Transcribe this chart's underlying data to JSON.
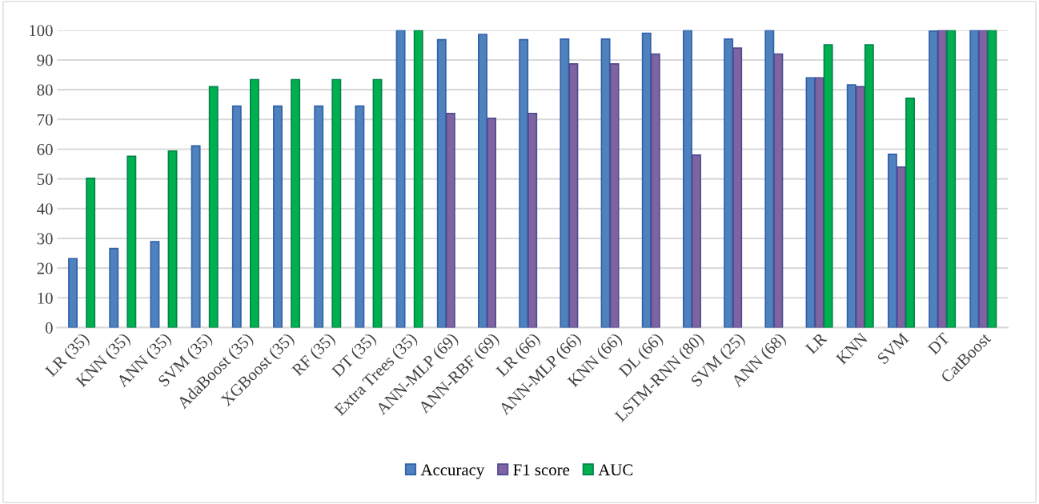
{
  "chart_data": {
    "type": "bar",
    "categories": [
      "LR (35)",
      "KNN (35)",
      "ANN (35)",
      "SVM (35)",
      "AdaBoost (35)",
      "XGBoost (35)",
      "RF (35)",
      "DT (35)",
      "Extra Trees (35)",
      "ANN-MLP (69)",
      "ANN-RBF (69)",
      "LR (66)",
      "ANN-MLP (66)",
      "KNN (66)",
      "DL (66)",
      "LSTM-RNN (80)",
      "SVM (25)",
      "ANN (68)",
      "LR",
      "KNN",
      "SVM",
      "DT",
      "CatBoost"
    ],
    "series": [
      {
        "name": "Accuracy",
        "color": "#4f81bd",
        "values": [
          23.2,
          26.6,
          28.9,
          61.1,
          74.5,
          74.5,
          74.5,
          74.5,
          100,
          96.8,
          98.6,
          96.8,
          97,
          97,
          99,
          100,
          97,
          100,
          84,
          81.6,
          58.3,
          99.7,
          100
        ]
      },
      {
        "name": "F1 score",
        "color": "#8064a2",
        "values": [
          null,
          null,
          null,
          null,
          null,
          null,
          null,
          null,
          null,
          72,
          70.4,
          72,
          88.7,
          88.7,
          92,
          58,
          94,
          92,
          84,
          81,
          54,
          100,
          100
        ]
      },
      {
        "name": "AUC",
        "color": "#00b050",
        "values": [
          50.2,
          57.6,
          59.4,
          81,
          83.4,
          83.4,
          83.4,
          83.4,
          100,
          null,
          null,
          null,
          null,
          null,
          null,
          null,
          null,
          null,
          95.1,
          95.1,
          77.1,
          100,
          100
        ]
      }
    ],
    "ylim": [
      0,
      100
    ],
    "yticks": [
      0,
      10,
      20,
      30,
      40,
      50,
      60,
      70,
      80,
      90,
      100
    ],
    "grid": "y",
    "legend": "bottom"
  }
}
